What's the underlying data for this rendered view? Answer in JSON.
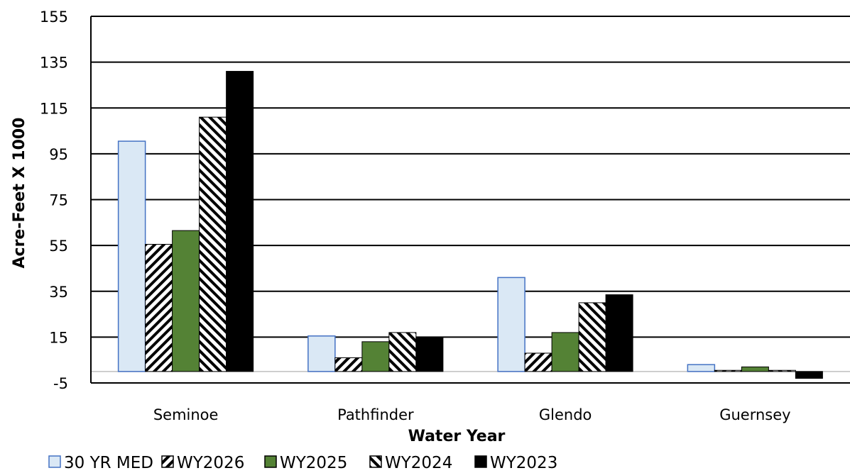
{
  "chart_data": {
    "type": "bar",
    "categories": [
      "Seminoe",
      "Pathfinder",
      "Glendo",
      "Guernsey"
    ],
    "series": [
      {
        "name": "30 YR MED",
        "values": [
          100.5,
          15.5,
          41,
          3
        ],
        "pattern": "solid",
        "fill": "#dae8f5",
        "stroke": "#4472c4"
      },
      {
        "name": "WY2026",
        "values": [
          55.5,
          6,
          8,
          0.5
        ],
        "pattern": "diag-up",
        "fill": "#ffffff",
        "stroke": "#000000"
      },
      {
        "name": "WY2025",
        "values": [
          61.5,
          13,
          17,
          2
        ],
        "pattern": "solid",
        "fill": "#548235",
        "stroke": "#000000"
      },
      {
        "name": "WY2024",
        "values": [
          111,
          17,
          30,
          0.5
        ],
        "pattern": "diag-down",
        "fill": "#ffffff",
        "stroke": "#000000"
      },
      {
        "name": "WY2023",
        "values": [
          131,
          15,
          33.5,
          -3
        ],
        "pattern": "solid",
        "fill": "#000000",
        "stroke": "#000000"
      }
    ],
    "xlabel": "Water Year",
    "ylabel": "Acre-Feet X 1000",
    "yticks": [
      155,
      135,
      115,
      95,
      75,
      55,
      35,
      15,
      -5
    ],
    "ylim": [
      -5,
      155
    ],
    "grid": true,
    "legend_position": "bottom-left"
  }
}
